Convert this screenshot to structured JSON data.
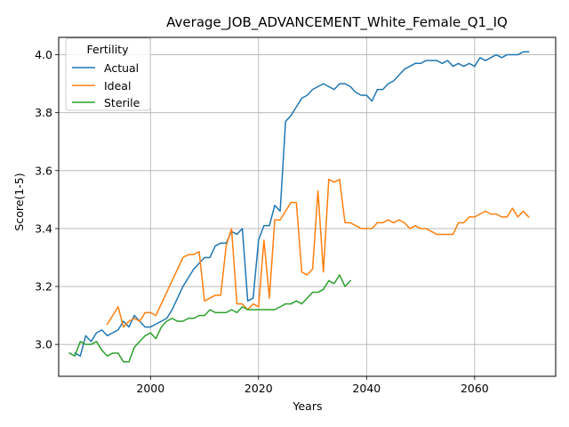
{
  "chart_data": {
    "type": "line",
    "title": "Average_JOB_ADVANCEMENT_White_Female_Q1_IQ",
    "xlabel": "Years",
    "ylabel": "Score(1-5)",
    "xlim": [
      1983,
      2075
    ],
    "ylim": [
      2.89,
      4.06
    ],
    "xticks": [
      2000,
      2020,
      2040,
      2060
    ],
    "yticks": [
      3.0,
      3.2,
      3.4,
      3.6,
      3.8,
      4.0
    ],
    "ytick_labels": [
      "3.0",
      "3.2",
      "3.4",
      "3.6",
      "3.8",
      "4.0"
    ],
    "grid": true,
    "legend": {
      "title": "Fertility",
      "placement": "top-left"
    },
    "series": [
      {
        "name": "Actual",
        "color": "#1f77b4",
        "x": [
          1986,
          1987,
          1988,
          1989,
          1990,
          1991,
          1992,
          1993,
          1994,
          1995,
          1996,
          1997,
          1998,
          1999,
          2000,
          2001,
          2002,
          2003,
          2004,
          2005,
          2006,
          2007,
          2008,
          2009,
          2010,
          2011,
          2012,
          2013,
          2014,
          2015,
          2016,
          2017,
          2018,
          2019,
          2020,
          2021,
          2022,
          2023,
          2024,
          2025,
          2026,
          2027,
          2028,
          2029,
          2030,
          2031,
          2032,
          2033,
          2034,
          2035,
          2036,
          2037,
          2038,
          2039,
          2040,
          2041,
          2042,
          2043,
          2044,
          2045,
          2046,
          2047,
          2048,
          2049,
          2050,
          2051,
          2052,
          2053,
          2054,
          2055,
          2056,
          2057,
          2058,
          2059,
          2060,
          2061,
          2062,
          2063,
          2064,
          2065,
          2066,
          2067,
          2068,
          2069,
          2070
        ],
        "values": [
          2.97,
          2.96,
          3.03,
          3.01,
          3.04,
          3.05,
          3.03,
          3.04,
          3.05,
          3.08,
          3.06,
          3.1,
          3.08,
          3.06,
          3.06,
          3.07,
          3.08,
          3.09,
          3.12,
          3.16,
          3.2,
          3.23,
          3.26,
          3.28,
          3.3,
          3.3,
          3.34,
          3.35,
          3.35,
          3.39,
          3.38,
          3.4,
          3.15,
          3.16,
          3.36,
          3.41,
          3.41,
          3.48,
          3.46,
          3.77,
          3.79,
          3.82,
          3.85,
          3.86,
          3.88,
          3.89,
          3.9,
          3.89,
          3.88,
          3.9,
          3.9,
          3.89,
          3.87,
          3.86,
          3.86,
          3.84,
          3.88,
          3.88,
          3.9,
          3.91,
          3.93,
          3.95,
          3.96,
          3.97,
          3.97,
          3.98,
          3.98,
          3.98,
          3.97,
          3.98,
          3.96,
          3.97,
          3.96,
          3.97,
          3.96,
          3.99,
          3.98,
          3.99,
          4.0,
          3.99,
          4.0,
          4.0,
          4.0,
          4.01,
          4.01
        ]
      },
      {
        "name": "Ideal",
        "color": "#ff7f0e",
        "x": [
          1992,
          1993,
          1994,
          1995,
          1996,
          1997,
          1998,
          1999,
          2000,
          2001,
          2002,
          2003,
          2004,
          2005,
          2006,
          2007,
          2008,
          2009,
          2010,
          2011,
          2012,
          2013,
          2014,
          2015,
          2016,
          2017,
          2018,
          2019,
          2020,
          2021,
          2022,
          2023,
          2024,
          2025,
          2026,
          2027,
          2028,
          2029,
          2030,
          2031,
          2032,
          2033,
          2034,
          2035,
          2036,
          2037,
          2038,
          2039,
          2040,
          2041,
          2042,
          2043,
          2044,
          2045,
          2046,
          2047,
          2048,
          2049,
          2050,
          2051,
          2052,
          2053,
          2054,
          2055,
          2056,
          2057,
          2058,
          2059,
          2060,
          2061,
          2062,
          2063,
          2064,
          2065,
          2066,
          2067,
          2068,
          2069,
          2070
        ],
        "values": [
          3.07,
          3.1,
          3.13,
          3.06,
          3.08,
          3.09,
          3.08,
          3.11,
          3.11,
          3.1,
          3.14,
          3.18,
          3.22,
          3.26,
          3.3,
          3.31,
          3.31,
          3.32,
          3.15,
          3.16,
          3.17,
          3.17,
          3.34,
          3.4,
          3.14,
          3.14,
          3.12,
          3.14,
          3.13,
          3.36,
          3.16,
          3.43,
          3.43,
          3.46,
          3.49,
          3.49,
          3.25,
          3.24,
          3.26,
          3.53,
          3.25,
          3.57,
          3.56,
          3.57,
          3.42,
          3.42,
          3.41,
          3.4,
          3.4,
          3.4,
          3.42,
          3.42,
          3.43,
          3.42,
          3.43,
          3.42,
          3.4,
          3.41,
          3.4,
          3.4,
          3.39,
          3.38,
          3.38,
          3.38,
          3.38,
          3.42,
          3.42,
          3.44,
          3.44,
          3.45,
          3.46,
          3.45,
          3.45,
          3.44,
          3.44,
          3.47,
          3.44,
          3.46,
          3.44
        ]
      },
      {
        "name": "Sterile",
        "color": "#2ca02c",
        "x": [
          1985,
          1986,
          1987,
          1988,
          1989,
          1990,
          1991,
          1992,
          1993,
          1994,
          1995,
          1996,
          1997,
          1998,
          1999,
          2000,
          2001,
          2002,
          2003,
          2004,
          2005,
          2006,
          2007,
          2008,
          2009,
          2010,
          2011,
          2012,
          2013,
          2014,
          2015,
          2016,
          2017,
          2018,
          2019,
          2020,
          2021,
          2022,
          2023,
          2024,
          2025,
          2026,
          2027,
          2028,
          2029,
          2030,
          2031,
          2032,
          2033,
          2034,
          2035,
          2036,
          2037
        ],
        "values": [
          2.97,
          2.96,
          3.01,
          3.0,
          3.0,
          3.01,
          2.98,
          2.96,
          2.97,
          2.97,
          2.94,
          2.94,
          2.99,
          3.01,
          3.03,
          3.04,
          3.02,
          3.06,
          3.08,
          3.09,
          3.08,
          3.08,
          3.09,
          3.09,
          3.1,
          3.1,
          3.12,
          3.11,
          3.11,
          3.11,
          3.12,
          3.11,
          3.13,
          3.12,
          3.12,
          3.12,
          3.12,
          3.12,
          3.12,
          3.13,
          3.14,
          3.14,
          3.15,
          3.14,
          3.16,
          3.18,
          3.18,
          3.19,
          3.22,
          3.21,
          3.24,
          3.2,
          3.22
        ]
      }
    ]
  }
}
